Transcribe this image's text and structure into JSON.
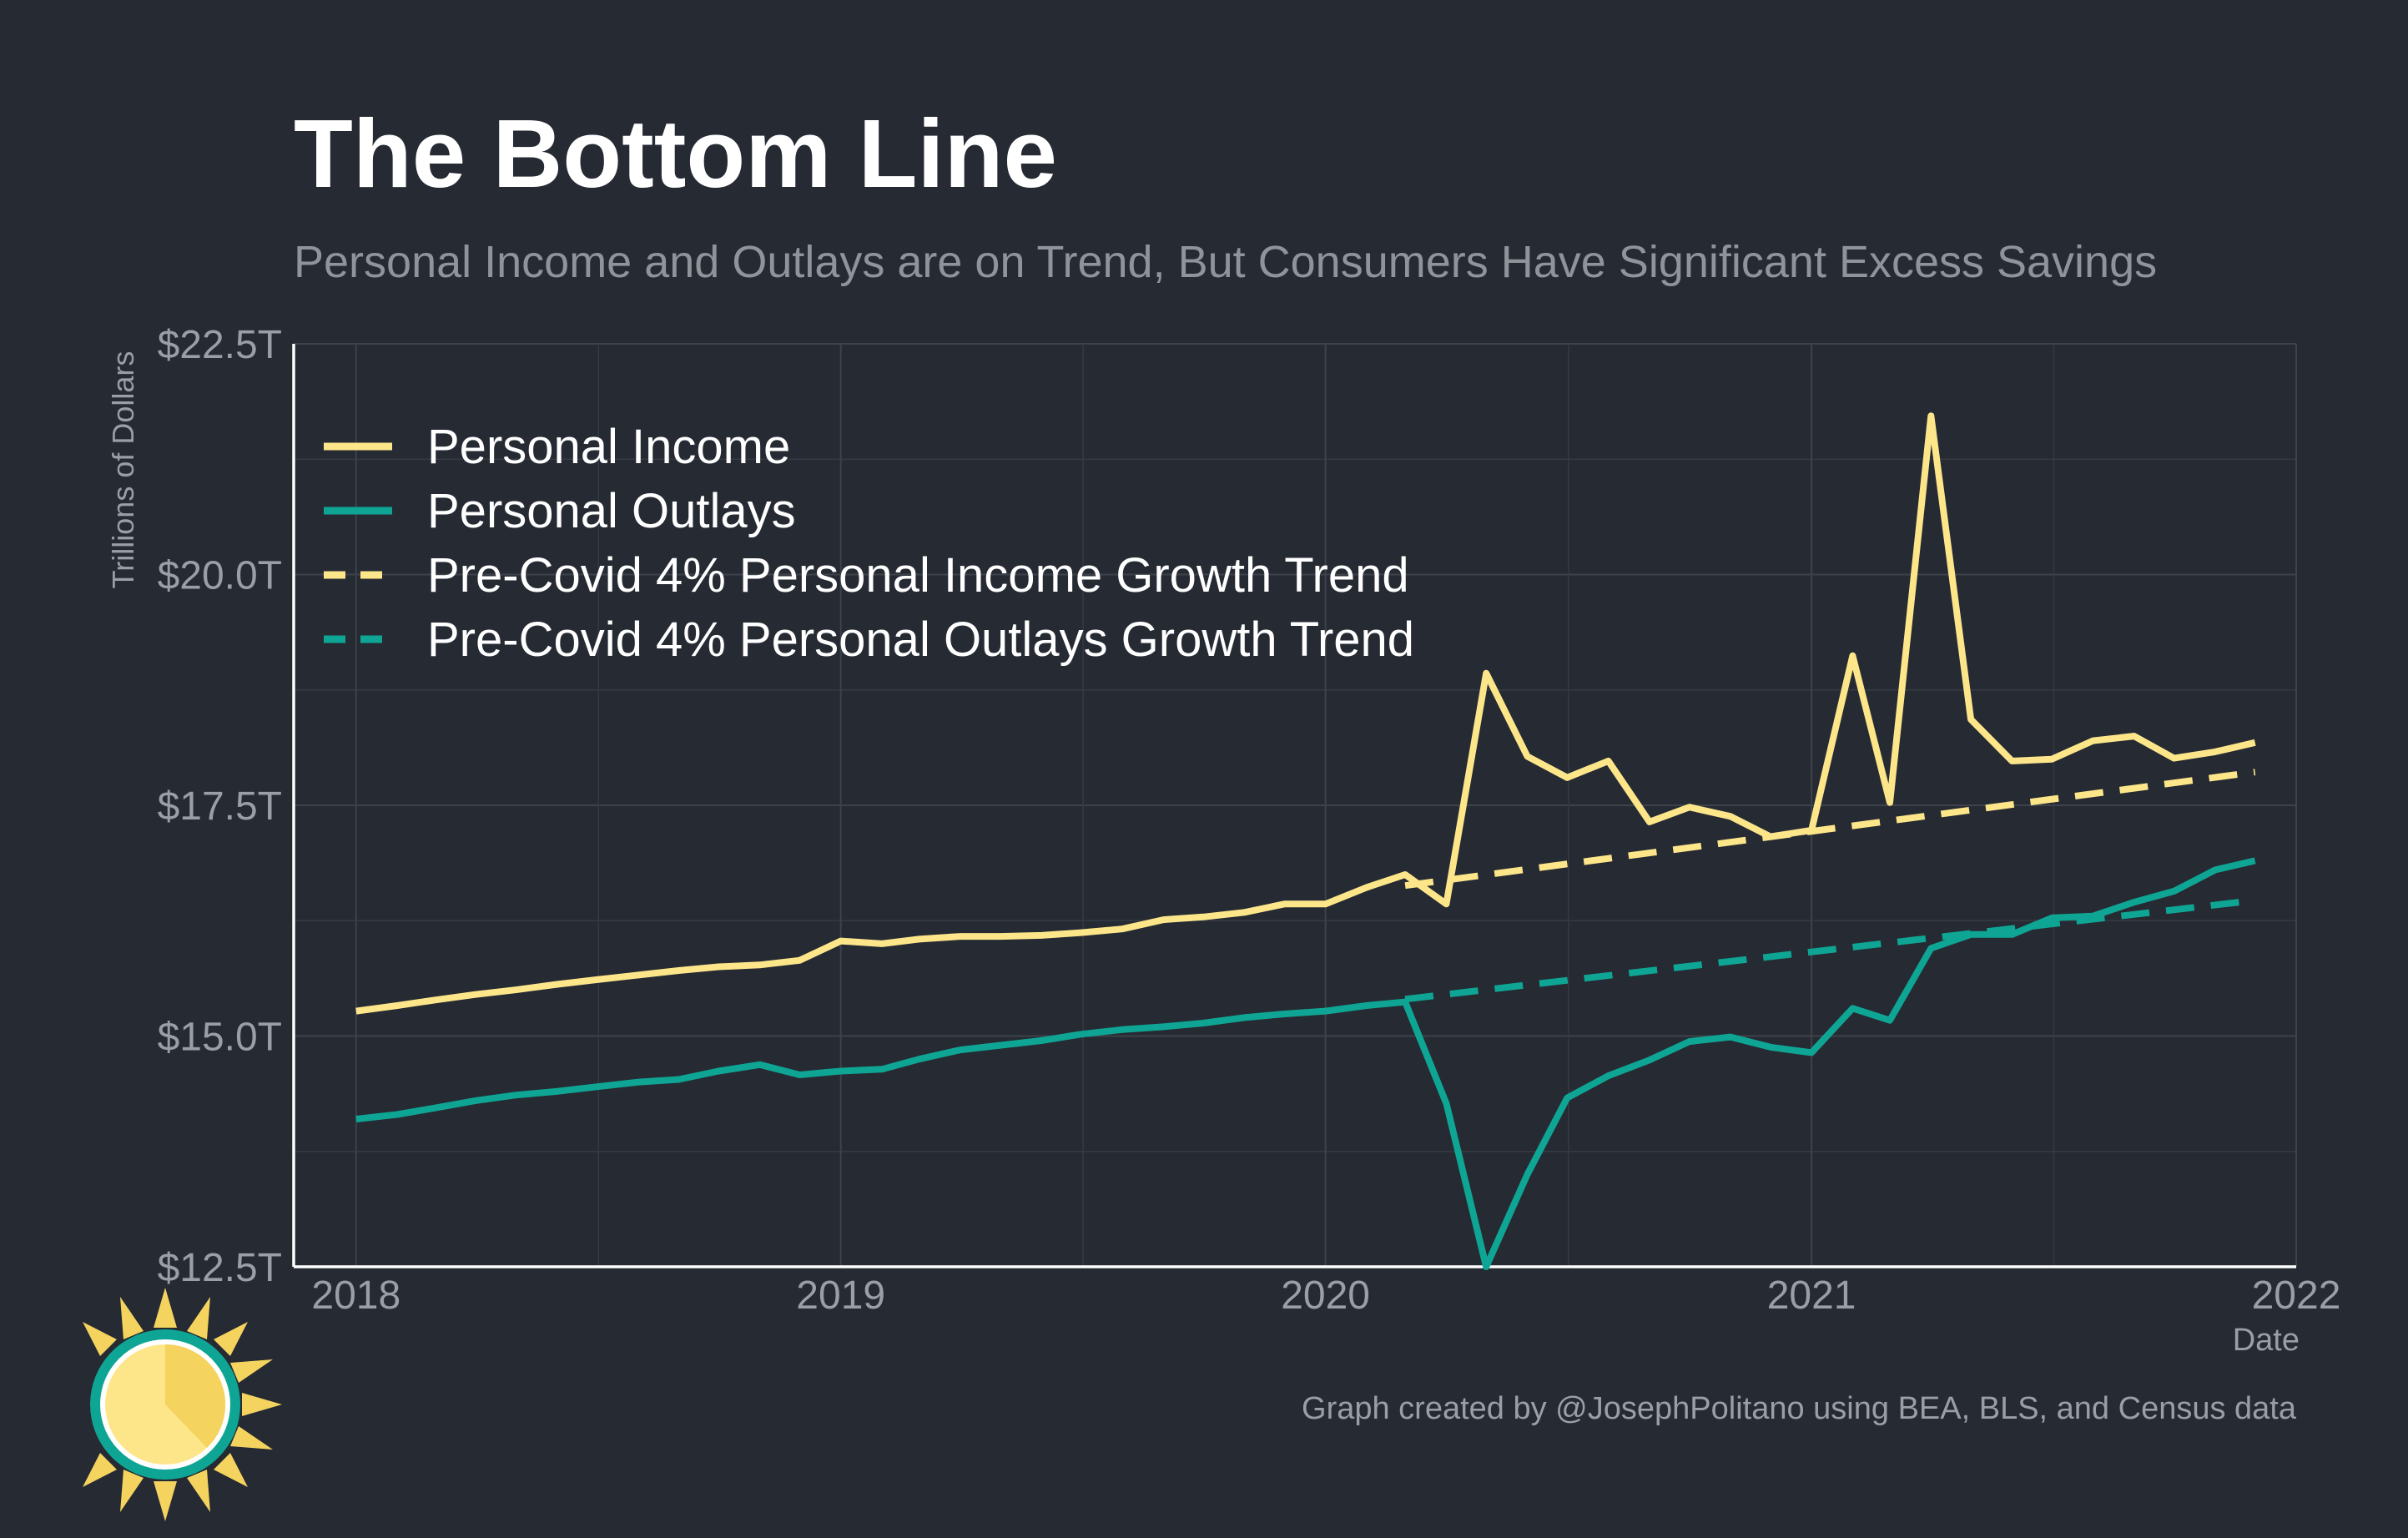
{
  "chart_data": {
    "type": "line",
    "title": "The Bottom Line",
    "subtitle": "Personal Income and Outlays are on Trend, But Consumers Have Significant Excess Savings",
    "xlabel": "Date",
    "ylabel": "Trillions of Dollars",
    "caption": "Graph created by @JosephPolitano using BEA, BLS, and Census data",
    "xlim": [
      "2017-11-15",
      "2022-01-01"
    ],
    "ylim": [
      12.5,
      22.5
    ],
    "x_ticks": [
      {
        "value": "2018-01-01",
        "label": "2018"
      },
      {
        "value": "2019-01-01",
        "label": "2019"
      },
      {
        "value": "2020-01-01",
        "label": "2020"
      },
      {
        "value": "2021-01-01",
        "label": "2021"
      },
      {
        "value": "2022-01-01",
        "label": "2022"
      }
    ],
    "y_ticks": [
      {
        "value": 12.5,
        "label": "$12.5T"
      },
      {
        "value": 15.0,
        "label": "$15.0T"
      },
      {
        "value": 17.5,
        "label": "$17.5T"
      },
      {
        "value": 20.0,
        "label": "$20.0T"
      },
      {
        "value": 22.5,
        "label": "$22.5T"
      }
    ],
    "grid": true,
    "legend_position": "top-left",
    "series": [
      {
        "name": "Personal Income",
        "color": "#fde68a",
        "style": "solid",
        "points": [
          [
            "2018-01-01",
            15.27
          ],
          [
            "2018-02-01",
            15.33
          ],
          [
            "2018-03-01",
            15.39
          ],
          [
            "2018-04-01",
            15.45
          ],
          [
            "2018-05-01",
            15.5
          ],
          [
            "2018-06-01",
            15.56
          ],
          [
            "2018-07-01",
            15.61
          ],
          [
            "2018-08-01",
            15.66
          ],
          [
            "2018-09-01",
            15.71
          ],
          [
            "2018-10-01",
            15.75
          ],
          [
            "2018-11-01",
            15.77
          ],
          [
            "2018-12-01",
            15.82
          ],
          [
            "2019-01-01",
            16.03
          ],
          [
            "2019-02-01",
            16.0
          ],
          [
            "2019-03-01",
            16.05
          ],
          [
            "2019-04-01",
            16.08
          ],
          [
            "2019-05-01",
            16.08
          ],
          [
            "2019-06-01",
            16.09
          ],
          [
            "2019-07-01",
            16.12
          ],
          [
            "2019-08-01",
            16.16
          ],
          [
            "2019-09-01",
            16.26
          ],
          [
            "2019-10-01",
            16.29
          ],
          [
            "2019-11-01",
            16.34
          ],
          [
            "2019-12-01",
            16.43
          ],
          [
            "2020-01-01",
            16.43
          ],
          [
            "2020-02-01",
            16.61
          ],
          [
            "2020-03-01",
            16.75
          ],
          [
            "2020-04-01",
            16.43
          ],
          [
            "2020-05-01",
            18.93
          ],
          [
            "2020-06-01",
            18.03
          ],
          [
            "2020-07-01",
            17.8
          ],
          [
            "2020-08-01",
            17.98
          ],
          [
            "2020-09-01",
            17.32
          ],
          [
            "2020-10-01",
            17.48
          ],
          [
            "2020-11-01",
            17.38
          ],
          [
            "2020-12-01",
            17.16
          ],
          [
            "2021-01-01",
            17.23
          ],
          [
            "2021-02-01",
            19.12
          ],
          [
            "2021-03-01",
            17.53
          ],
          [
            "2021-04-01",
            21.72
          ],
          [
            "2021-05-01",
            18.43
          ],
          [
            "2021-06-01",
            17.98
          ],
          [
            "2021-07-01",
            18.0
          ],
          [
            "2021-08-01",
            18.2
          ],
          [
            "2021-09-01",
            18.25
          ],
          [
            "2021-10-01",
            18.01
          ],
          [
            "2021-11-01",
            18.08
          ],
          [
            "2021-12-01",
            18.18
          ]
        ]
      },
      {
        "name": "Personal Outlays",
        "color": "#0fa594",
        "style": "solid",
        "points": [
          [
            "2018-01-01",
            14.1
          ],
          [
            "2018-02-01",
            14.15
          ],
          [
            "2018-03-01",
            14.22
          ],
          [
            "2018-04-01",
            14.3
          ],
          [
            "2018-05-01",
            14.36
          ],
          [
            "2018-06-01",
            14.4
          ],
          [
            "2018-07-01",
            14.45
          ],
          [
            "2018-08-01",
            14.5
          ],
          [
            "2018-09-01",
            14.53
          ],
          [
            "2018-10-01",
            14.62
          ],
          [
            "2018-11-01",
            14.69
          ],
          [
            "2018-12-01",
            14.58
          ],
          [
            "2019-01-01",
            14.62
          ],
          [
            "2019-02-01",
            14.64
          ],
          [
            "2019-03-01",
            14.75
          ],
          [
            "2019-04-01",
            14.85
          ],
          [
            "2019-05-01",
            14.9
          ],
          [
            "2019-06-01",
            14.95
          ],
          [
            "2019-07-01",
            15.02
          ],
          [
            "2019-08-01",
            15.07
          ],
          [
            "2019-09-01",
            15.1
          ],
          [
            "2019-10-01",
            15.14
          ],
          [
            "2019-11-01",
            15.2
          ],
          [
            "2019-12-01",
            15.24
          ],
          [
            "2020-01-01",
            15.27
          ],
          [
            "2020-02-01",
            15.33
          ],
          [
            "2020-03-01",
            15.37
          ],
          [
            "2020-04-01",
            14.27
          ],
          [
            "2020-05-01",
            12.5
          ],
          [
            "2020-06-01",
            13.5
          ],
          [
            "2020-07-01",
            14.33
          ],
          [
            "2020-08-01",
            14.57
          ],
          [
            "2020-09-01",
            14.74
          ],
          [
            "2020-10-01",
            14.94
          ],
          [
            "2020-11-01",
            14.99
          ],
          [
            "2020-12-01",
            14.88
          ],
          [
            "2021-01-01",
            14.82
          ],
          [
            "2021-02-01",
            15.3
          ],
          [
            "2021-03-01",
            15.17
          ],
          [
            "2021-04-01",
            15.95
          ],
          [
            "2021-05-01",
            16.1
          ],
          [
            "2021-06-01",
            16.1
          ],
          [
            "2021-07-01",
            16.28
          ],
          [
            "2021-08-01",
            16.3
          ],
          [
            "2021-09-01",
            16.45
          ],
          [
            "2021-10-01",
            16.57
          ],
          [
            "2021-11-01",
            16.8
          ],
          [
            "2021-12-01",
            16.9
          ]
        ]
      },
      {
        "name": "Pre-Covid 4% Personal Income Growth Trend",
        "color": "#fde68a",
        "style": "dashed",
        "points": [
          [
            "2020-03-01",
            16.63
          ],
          [
            "2021-12-01",
            17.86
          ]
        ]
      },
      {
        "name": "Pre-Covid 4% Personal Outlays Growth Trend",
        "color": "#0fa594",
        "style": "dashed",
        "points": [
          [
            "2020-03-01",
            15.4
          ],
          [
            "2021-12-01",
            16.47
          ]
        ]
      }
    ]
  }
}
